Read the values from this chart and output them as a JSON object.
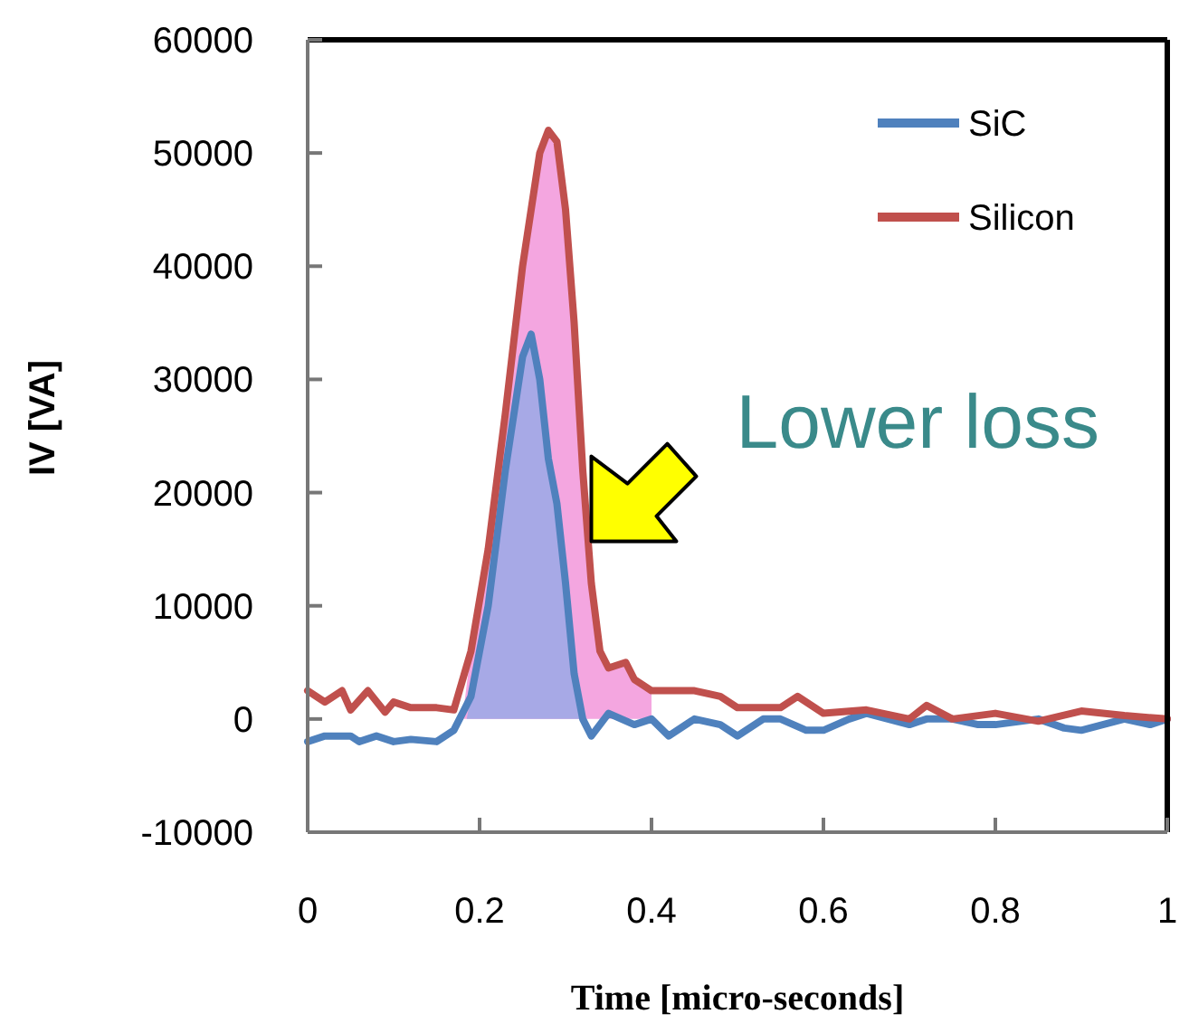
{
  "chart_data": {
    "type": "line",
    "xlabel": "Time [micro-seconds]",
    "ylabel": "IV [VA]",
    "xlim": [
      0,
      1
    ],
    "ylim": [
      -10000,
      60000
    ],
    "xticks": [
      0,
      0.2,
      0.4,
      0.6,
      0.8,
      1
    ],
    "yticks": [
      -10000,
      0,
      10000,
      20000,
      30000,
      40000,
      50000,
      60000
    ],
    "grid": false,
    "legend": "top right",
    "line_style": "solid",
    "marker": "none",
    "annotations": [
      {
        "text": "Lower loss",
        "x": 0.33,
        "y": 20000
      }
    ],
    "series": [
      {
        "type": "area",
        "color": "#f4a6e0",
        "x": [
          0.18,
          0.19,
          0.21,
          0.23,
          0.25,
          0.27,
          0.28,
          0.29,
          0.3,
          0.31,
          0.32,
          0.33,
          0.34,
          0.35,
          0.37,
          0.38,
          0.4
        ],
        "values": [
          0,
          6000,
          15000,
          27000,
          40000,
          50000,
          52000,
          51000,
          45000,
          35000,
          22000,
          12000,
          6000,
          4500,
          5000,
          3500,
          2500
        ]
      },
      {
        "type": "area",
        "color": "#a7a9e6",
        "x": [
          0.185,
          0.19,
          0.21,
          0.23,
          0.25,
          0.26,
          0.27,
          0.28,
          0.29,
          0.3,
          0.31,
          0.32
        ],
        "values": [
          0,
          2000,
          10000,
          22000,
          32000,
          34000,
          30000,
          23000,
          19000,
          12000,
          4000,
          0
        ]
      },
      {
        "name": "SiC",
        "color": "#4f81bd",
        "x": [
          0,
          0.02,
          0.05,
          0.06,
          0.08,
          0.1,
          0.12,
          0.15,
          0.17,
          0.19,
          0.21,
          0.23,
          0.25,
          0.26,
          0.27,
          0.28,
          0.29,
          0.3,
          0.31,
          0.32,
          0.33,
          0.35,
          0.38,
          0.4,
          0.42,
          0.45,
          0.48,
          0.5,
          0.53,
          0.55,
          0.58,
          0.6,
          0.63,
          0.65,
          0.7,
          0.72,
          0.75,
          0.78,
          0.8,
          0.85,
          0.88,
          0.9,
          0.95,
          0.98,
          1
        ],
        "values": [
          -2000,
          -1500,
          -1500,
          -2000,
          -1500,
          -2000,
          -1800,
          -2000,
          -1000,
          2000,
          10000,
          22000,
          32000,
          34000,
          30000,
          23000,
          19000,
          12000,
          4000,
          0,
          -1500,
          500,
          -500,
          0,
          -1500,
          0,
          -500,
          -1500,
          0,
          0,
          -1000,
          -1000,
          0,
          500,
          -500,
          0,
          0,
          -500,
          -500,
          0,
          -800,
          -1000,
          0,
          -500,
          0
        ]
      },
      {
        "name": "Silicon",
        "color": "#c0504d",
        "x": [
          0,
          0.02,
          0.04,
          0.05,
          0.07,
          0.09,
          0.1,
          0.12,
          0.15,
          0.17,
          0.19,
          0.21,
          0.23,
          0.25,
          0.27,
          0.28,
          0.29,
          0.3,
          0.31,
          0.32,
          0.33,
          0.34,
          0.35,
          0.37,
          0.38,
          0.4,
          0.45,
          0.48,
          0.5,
          0.55,
          0.57,
          0.6,
          0.65,
          0.7,
          0.72,
          0.75,
          0.8,
          0.85,
          0.9,
          0.95,
          1
        ],
        "values": [
          2500,
          1500,
          2500,
          800,
          2500,
          600,
          1500,
          1000,
          1000,
          800,
          6000,
          15000,
          27000,
          40000,
          50000,
          52000,
          51000,
          45000,
          35000,
          22000,
          12000,
          6000,
          4500,
          5000,
          3500,
          2500,
          2500,
          2000,
          1000,
          1000,
          2000,
          500,
          800,
          0,
          1200,
          0,
          500,
          -200,
          700,
          300,
          0
        ]
      }
    ]
  }
}
